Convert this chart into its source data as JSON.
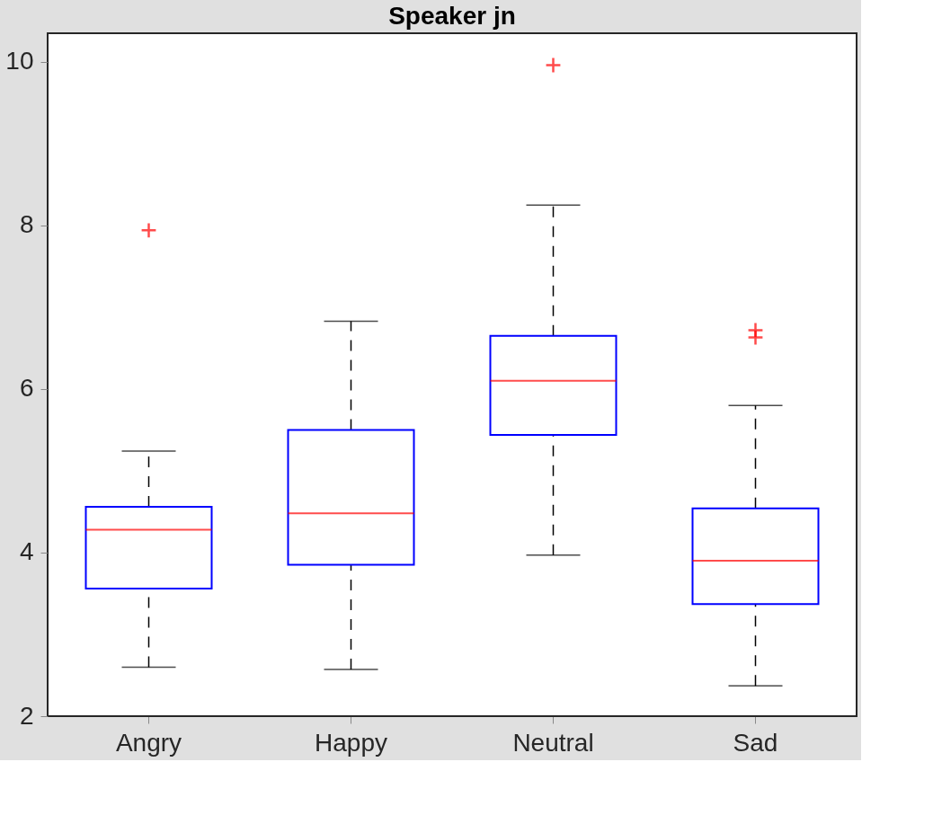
{
  "chart_data": {
    "type": "box",
    "title": "Speaker jn",
    "categories": [
      "Angry",
      "Happy",
      "Neutral",
      "Sad"
    ],
    "color": "#0000ff",
    "boxes": [
      {
        "low": 2.6,
        "q1": 3.56,
        "median": 4.28,
        "q3": 4.56,
        "high": 5.24,
        "outliers": [
          7.94
        ]
      },
      {
        "low": 2.57,
        "q1": 3.85,
        "median": 4.48,
        "q3": 5.5,
        "high": 6.83
      },
      {
        "low": 3.97,
        "q1": 5.44,
        "median": 6.1,
        "q3": 6.65,
        "high": 8.25,
        "outliers": [
          9.96
        ]
      },
      {
        "low": 2.37,
        "q1": 3.37,
        "median": 3.9,
        "q3": 4.54,
        "high": 5.8,
        "outliers": [
          6.72,
          6.63
        ]
      }
    ],
    "ylim": [
      2,
      10.35
    ],
    "yticks": [
      2,
      4,
      6,
      8,
      10
    ],
    "grid": false
  }
}
